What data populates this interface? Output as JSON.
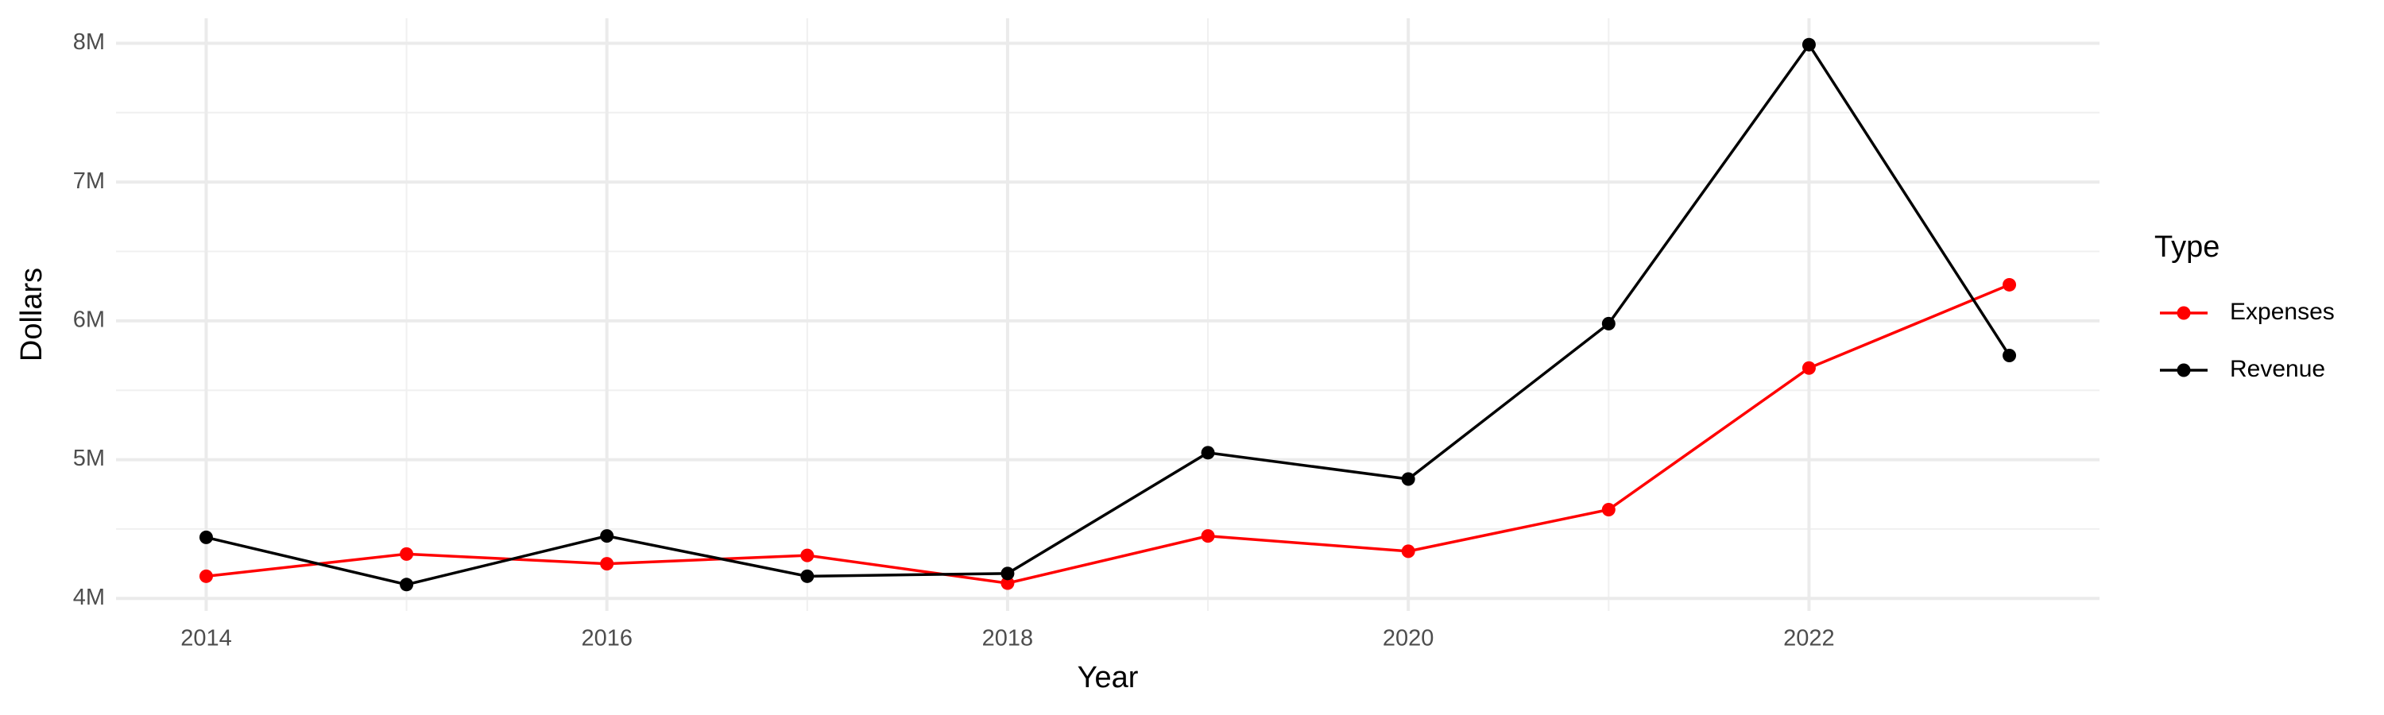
{
  "chart_data": {
    "type": "line",
    "x_label": "Year",
    "y_label": "Dollars",
    "legend_title": "Type",
    "x": [
      2014,
      2015,
      2016,
      2017,
      2018,
      2019,
      2020,
      2021,
      2022,
      2023
    ],
    "series": [
      {
        "name": "Expenses",
        "color": "#ff0000",
        "values": [
          4160000,
          4320000,
          4250000,
          4310000,
          4110000,
          4450000,
          4340000,
          4640000,
          5660000,
          6260000
        ]
      },
      {
        "name": "Revenue",
        "color": "#000000",
        "values": [
          4440000,
          4100000,
          4450000,
          4160000,
          4180000,
          5050000,
          4860000,
          5980000,
          7990000,
          5750000
        ]
      }
    ],
    "xlim": [
      2013.55,
      2023.45
    ],
    "xticks": [
      2014,
      2016,
      2018,
      2020,
      2022
    ],
    "ylim": [
      3910000,
      8180000
    ],
    "yticks": [
      {
        "value": 4000000,
        "label": "4M"
      },
      {
        "value": 5000000,
        "label": "5M"
      },
      {
        "value": 6000000,
        "label": "6M"
      },
      {
        "value": 7000000,
        "label": "7M"
      },
      {
        "value": 8000000,
        "label": "8M"
      }
    ],
    "grid": true,
    "legend": "right"
  }
}
